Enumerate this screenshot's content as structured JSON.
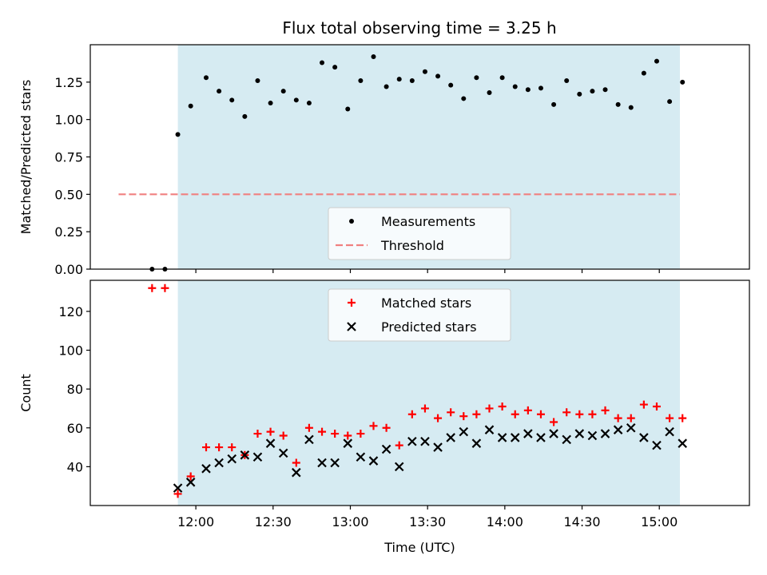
{
  "title": "Flux total observing time = 3.25 h",
  "colors": {
    "span": "#add8e6",
    "measure": "#000000",
    "threshold": "#f08080",
    "matched": "#ff0000",
    "predicted": "#000000"
  },
  "chart_data": [
    {
      "type": "scatter",
      "panel": "top",
      "ylabel": "Matched/Predicted stars",
      "ylim": [
        0,
        1.5
      ],
      "yticks": [
        0.0,
        0.25,
        0.5,
        0.75,
        1.0,
        1.25
      ],
      "ytick_labels": [
        "0.00",
        "0.25",
        "0.50",
        "0.75",
        "1.00",
        "1.25"
      ],
      "xlim": [
        "11:19",
        "15:35"
      ],
      "x_tick_times": [
        "12:00",
        "12:30",
        "13:00",
        "13:30",
        "14:00",
        "14:30",
        "15:00"
      ],
      "x_tick_labels_shown": false,
      "shaded_span": [
        "11:53",
        "15:08"
      ],
      "threshold": {
        "value": 0.5,
        "x": [
          "11:30",
          "15:08"
        ],
        "style": "dashed",
        "name": "Threshold"
      },
      "legend_position": "lower center",
      "series": [
        {
          "name": "Measurements",
          "x": [
            "11:43",
            "11:48",
            "11:53",
            "11:58",
            "12:04",
            "12:09",
            "12:14",
            "12:19",
            "12:24",
            "12:29",
            "12:34",
            "12:39",
            "12:44",
            "12:49",
            "12:54",
            "12:59",
            "13:04",
            "13:09",
            "13:14",
            "13:19",
            "13:24",
            "13:29",
            "13:34",
            "13:39",
            "13:44",
            "13:49",
            "13:54",
            "13:59",
            "14:04",
            "14:09",
            "14:14",
            "14:19",
            "14:24",
            "14:29",
            "14:34",
            "14:39",
            "14:44",
            "14:49",
            "14:54",
            "14:59",
            "15:04",
            "15:09"
          ],
          "y": [
            0.0,
            0.0,
            0.9,
            1.09,
            1.28,
            1.19,
            1.13,
            1.02,
            1.26,
            1.11,
            1.19,
            1.13,
            1.11,
            1.38,
            1.35,
            1.07,
            1.26,
            1.42,
            1.22,
            1.27,
            1.26,
            1.32,
            1.29,
            1.23,
            1.14,
            1.28,
            1.18,
            1.28,
            1.22,
            1.2,
            1.21,
            1.1,
            1.26,
            1.17,
            1.19,
            1.2,
            1.1,
            1.08,
            1.31,
            1.39,
            1.12,
            1.25
          ]
        }
      ]
    },
    {
      "type": "scatter",
      "panel": "bottom",
      "xlabel": "Time (UTC)",
      "ylabel": "Count",
      "ylim": [
        20,
        136
      ],
      "yticks": [
        40,
        60,
        80,
        100,
        120
      ],
      "ytick_labels": [
        "40",
        "60",
        "80",
        "100",
        "120"
      ],
      "xlim": [
        "11:19",
        "15:35"
      ],
      "x_tick_times": [
        "12:00",
        "12:30",
        "13:00",
        "13:30",
        "14:00",
        "14:30",
        "15:00"
      ],
      "x_tick_labels": [
        "12:00",
        "12:30",
        "13:00",
        "13:30",
        "14:00",
        "14:30",
        "15:00"
      ],
      "shaded_span": [
        "11:53",
        "15:08"
      ],
      "legend_position": "upper center",
      "series": [
        {
          "name": "Matched stars",
          "marker": "+",
          "x": [
            "11:43",
            "11:48",
            "11:53",
            "11:58",
            "12:04",
            "12:09",
            "12:14",
            "12:19",
            "12:24",
            "12:29",
            "12:34",
            "12:39",
            "12:44",
            "12:49",
            "12:54",
            "12:59",
            "13:04",
            "13:09",
            "13:14",
            "13:19",
            "13:24",
            "13:29",
            "13:34",
            "13:39",
            "13:44",
            "13:49",
            "13:54",
            "13:59",
            "14:04",
            "14:09",
            "14:14",
            "14:19",
            "14:24",
            "14:29",
            "14:34",
            "14:39",
            "14:44",
            "14:49",
            "14:54",
            "14:59",
            "15:04",
            "15:09"
          ],
          "y": [
            132,
            132,
            26,
            35,
            50,
            50,
            50,
            46,
            57,
            58,
            56,
            42,
            60,
            58,
            57,
            56,
            57,
            61,
            60,
            51,
            67,
            70,
            65,
            68,
            66,
            67,
            70,
            71,
            67,
            69,
            67,
            63,
            68,
            67,
            67,
            69,
            65,
            65,
            72,
            71,
            65,
            65
          ]
        },
        {
          "name": "Predicted stars",
          "marker": "x",
          "x": [
            "11:53",
            "11:58",
            "12:04",
            "12:09",
            "12:14",
            "12:19",
            "12:24",
            "12:29",
            "12:34",
            "12:39",
            "12:44",
            "12:49",
            "12:54",
            "12:59",
            "13:04",
            "13:09",
            "13:14",
            "13:19",
            "13:24",
            "13:29",
            "13:34",
            "13:39",
            "13:44",
            "13:49",
            "13:54",
            "13:59",
            "14:04",
            "14:09",
            "14:14",
            "14:19",
            "14:24",
            "14:29",
            "14:34",
            "14:39",
            "14:44",
            "14:49",
            "14:54",
            "14:59",
            "15:04",
            "15:09"
          ],
          "y": [
            29,
            32,
            39,
            42,
            44,
            46,
            45,
            52,
            47,
            37,
            54,
            42,
            42,
            52,
            45,
            43,
            49,
            40,
            53,
            53,
            50,
            55,
            58,
            52,
            59,
            55,
            55,
            57,
            55,
            57,
            54,
            57,
            56,
            57,
            59,
            60,
            55,
            51,
            58,
            52
          ]
        }
      ]
    }
  ]
}
